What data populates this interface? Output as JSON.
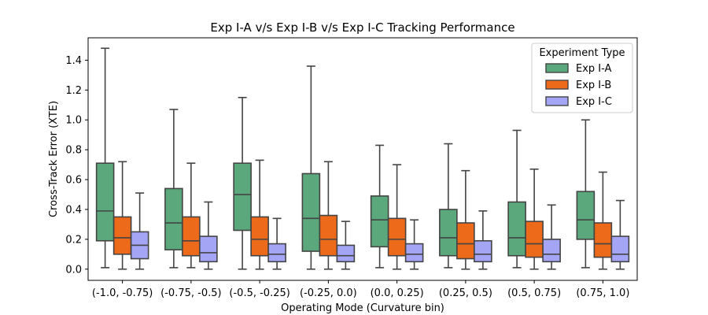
{
  "chart_data": {
    "type": "box",
    "title": "Exp I-A v/s Exp I-B  v/s Exp I-C Tracking Performance",
    "xlabel": "Operating Mode (Curvature bin)",
    "ylabel": "Cross-Track Error (XTE)",
    "ylim": [
      -0.075,
      1.55
    ],
    "yticks": [
      0.0,
      0.2,
      0.4,
      0.6,
      0.8,
      1.0,
      1.2,
      1.4
    ],
    "ytick_labels": [
      "0.0",
      "0.2",
      "0.4",
      "0.6",
      "0.8",
      "1.0",
      "1.2",
      "1.4"
    ],
    "categories": [
      "(-1.0, -0.75)",
      "(-0.75, -0.5)",
      "(-0.5, -0.25)",
      "(-0.25, 0.0)",
      "(0.0, 0.25)",
      "(0.25, 0.5)",
      "(0.5, 0.75)",
      "(0.75, 1.0)"
    ],
    "legend": {
      "title": "Experiment Type",
      "placement": "top-right"
    },
    "grid": false,
    "series": [
      {
        "name": "Exp I-A",
        "color": "#5aa87b",
        "boxes": [
          {
            "min": 0.01,
            "q1": 0.19,
            "median": 0.39,
            "q3": 0.71,
            "max": 1.48
          },
          {
            "min": 0.01,
            "q1": 0.13,
            "median": 0.31,
            "q3": 0.54,
            "max": 1.07
          },
          {
            "min": 0.0,
            "q1": 0.26,
            "median": 0.5,
            "q3": 0.71,
            "max": 1.15
          },
          {
            "min": 0.0,
            "q1": 0.12,
            "median": 0.34,
            "q3": 0.64,
            "max": 1.36
          },
          {
            "min": 0.01,
            "q1": 0.15,
            "median": 0.33,
            "q3": 0.49,
            "max": 0.83
          },
          {
            "min": 0.01,
            "q1": 0.09,
            "median": 0.21,
            "q3": 0.4,
            "max": 0.84
          },
          {
            "min": 0.01,
            "q1": 0.09,
            "median": 0.21,
            "q3": 0.45,
            "max": 0.93
          },
          {
            "min": 0.01,
            "q1": 0.2,
            "median": 0.33,
            "q3": 0.52,
            "max": 1.0
          }
        ]
      },
      {
        "name": "Exp I-B",
        "color": "#ec6a1a",
        "boxes": [
          {
            "min": 0.0,
            "q1": 0.1,
            "median": 0.21,
            "q3": 0.35,
            "max": 0.72
          },
          {
            "min": 0.01,
            "q1": 0.09,
            "median": 0.19,
            "q3": 0.35,
            "max": 0.71
          },
          {
            "min": 0.0,
            "q1": 0.09,
            "median": 0.2,
            "q3": 0.35,
            "max": 0.73
          },
          {
            "min": 0.0,
            "q1": 0.09,
            "median": 0.2,
            "q3": 0.36,
            "max": 0.72
          },
          {
            "min": 0.0,
            "q1": 0.09,
            "median": 0.2,
            "q3": 0.34,
            "max": 0.7
          },
          {
            "min": 0.0,
            "q1": 0.07,
            "median": 0.17,
            "q3": 0.31,
            "max": 0.66
          },
          {
            "min": 0.0,
            "q1": 0.08,
            "median": 0.17,
            "q3": 0.32,
            "max": 0.67
          },
          {
            "min": 0.0,
            "q1": 0.08,
            "median": 0.17,
            "q3": 0.31,
            "max": 0.65
          }
        ]
      },
      {
        "name": "Exp I-C",
        "color": "#a5a5f5",
        "boxes": [
          {
            "min": 0.0,
            "q1": 0.07,
            "median": 0.16,
            "q3": 0.25,
            "max": 0.51
          },
          {
            "min": 0.0,
            "q1": 0.05,
            "median": 0.11,
            "q3": 0.22,
            "max": 0.45
          },
          {
            "min": 0.0,
            "q1": 0.05,
            "median": 0.1,
            "q3": 0.17,
            "max": 0.34
          },
          {
            "min": 0.0,
            "q1": 0.05,
            "median": 0.09,
            "q3": 0.16,
            "max": 0.32
          },
          {
            "min": 0.0,
            "q1": 0.05,
            "median": 0.1,
            "q3": 0.17,
            "max": 0.33
          },
          {
            "min": 0.0,
            "q1": 0.05,
            "median": 0.1,
            "q3": 0.19,
            "max": 0.39
          },
          {
            "min": 0.0,
            "q1": 0.05,
            "median": 0.1,
            "q3": 0.2,
            "max": 0.43
          },
          {
            "min": 0.0,
            "q1": 0.05,
            "median": 0.1,
            "q3": 0.22,
            "max": 0.46
          }
        ]
      }
    ]
  }
}
